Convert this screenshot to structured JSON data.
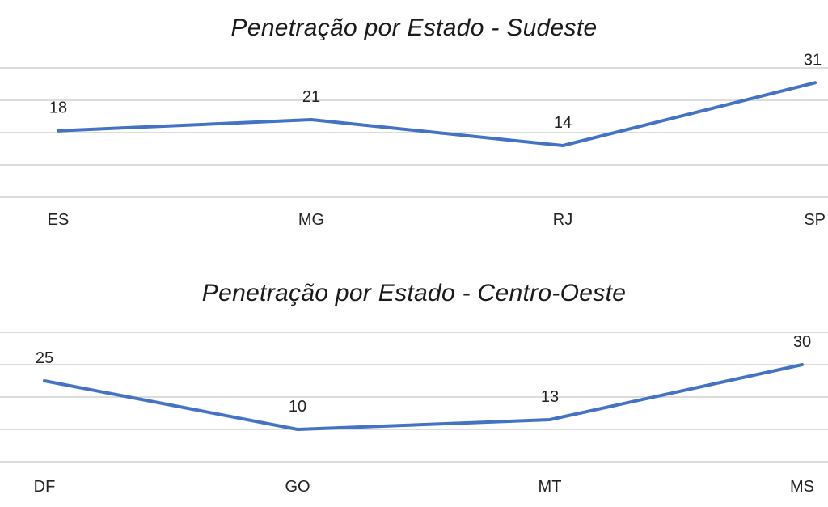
{
  "chart_data": [
    {
      "type": "line",
      "title": "Penetração por Estado - Sudeste",
      "categories": [
        "ES",
        "MG",
        "RJ",
        "SP"
      ],
      "values": [
        18,
        21,
        14,
        31
      ],
      "ylim": [
        0,
        35
      ],
      "grid": true,
      "legend": "none",
      "color": "#4472c4"
    },
    {
      "type": "line",
      "title": "Penetração por Estado - Centro-Oeste",
      "categories": [
        "DF",
        "GO",
        "MT",
        "MS"
      ],
      "values": [
        25,
        10,
        13,
        30
      ],
      "ylim": [
        0,
        40
      ],
      "grid": true,
      "legend": "none",
      "color": "#4472c4"
    }
  ]
}
